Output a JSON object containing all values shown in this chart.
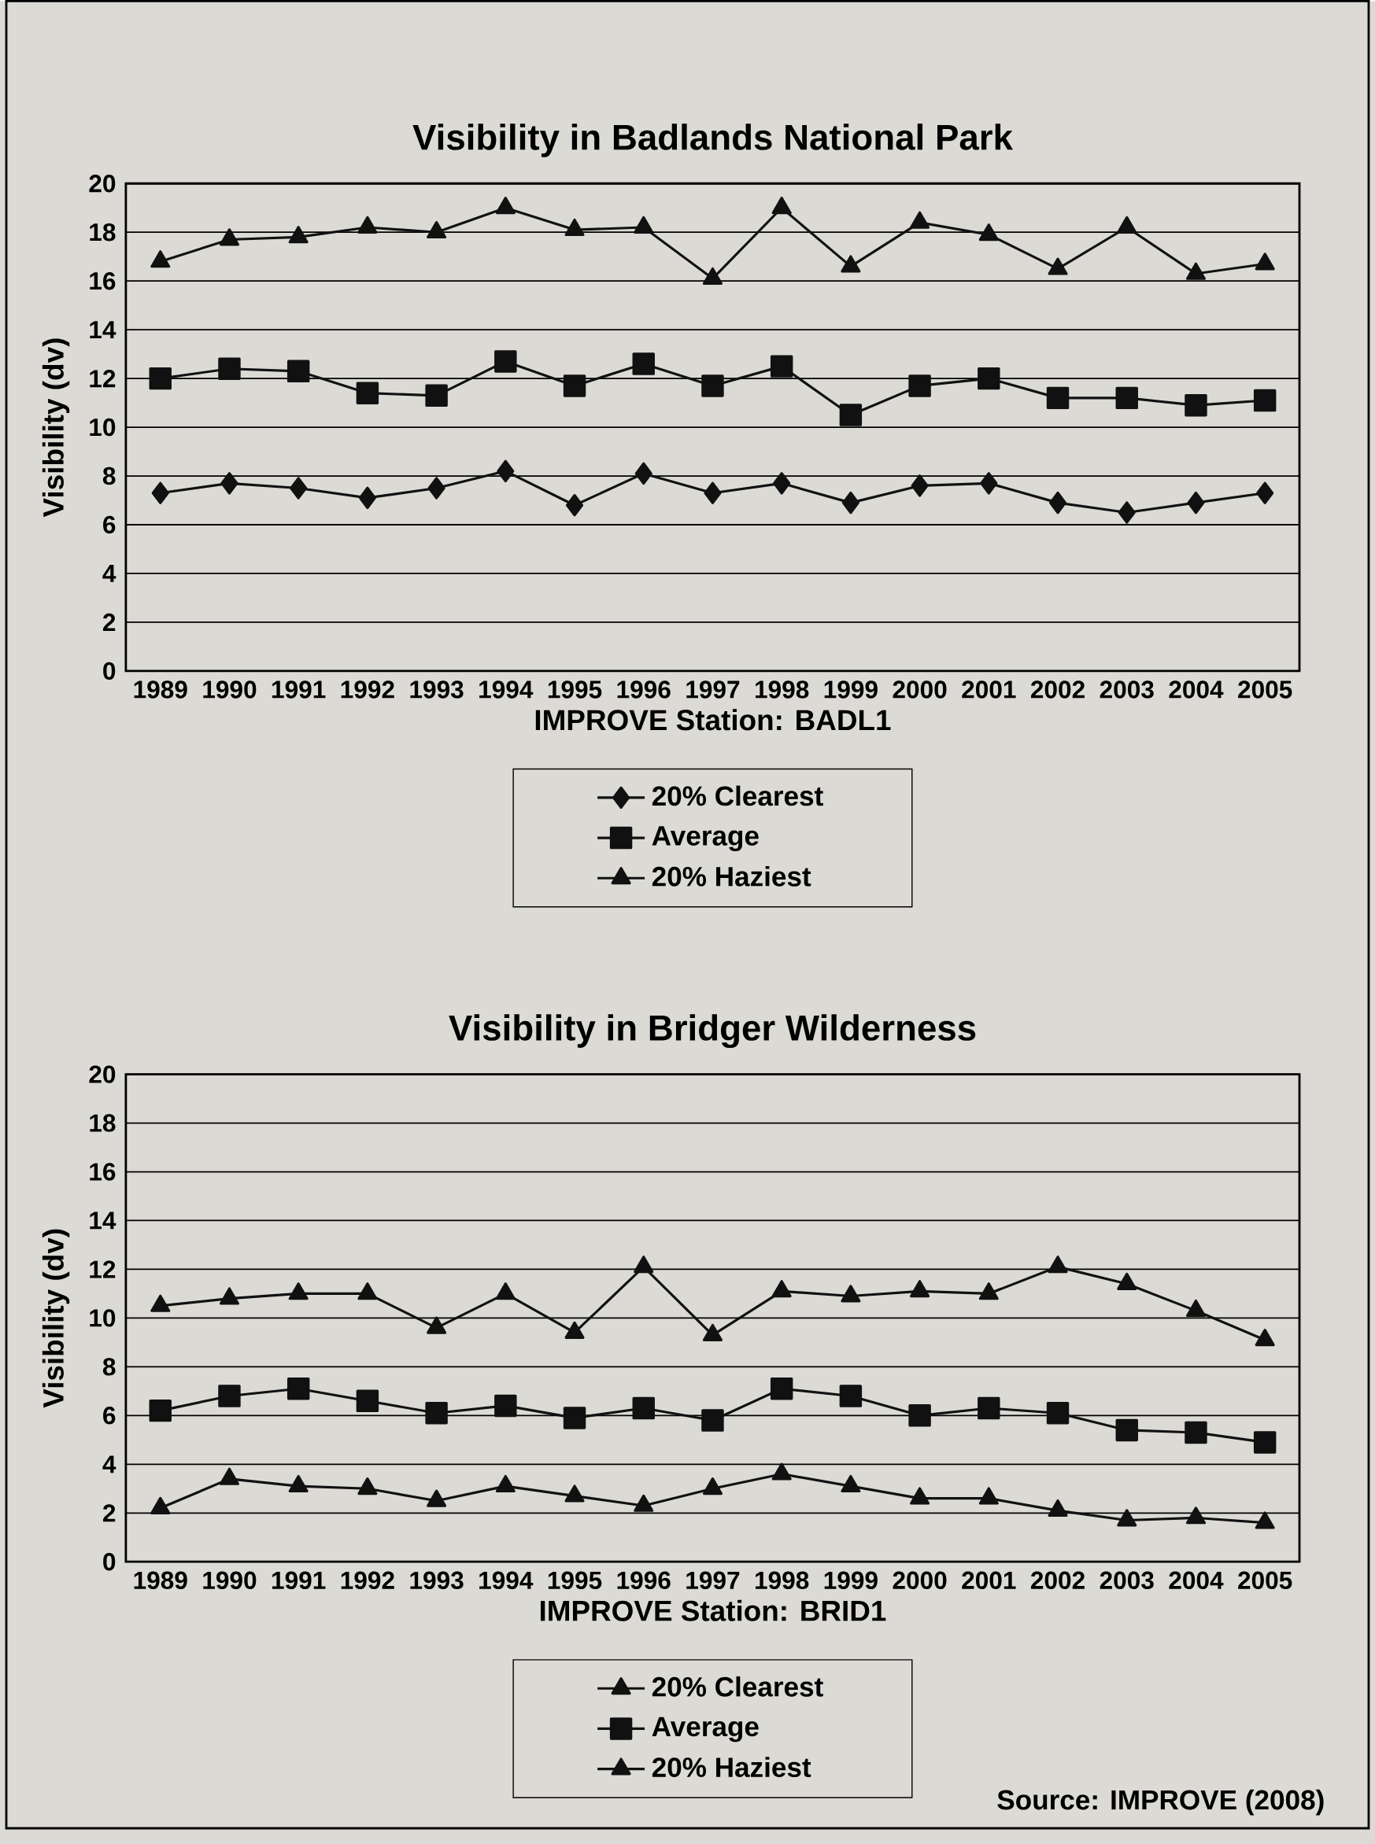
{
  "chart_data": [
    {
      "type": "line",
      "title": "Visibility in Badlands National Park",
      "xlabel": "IMPROVE Station:  BADL1",
      "ylabel": "Visibility (dv)",
      "categories": [
        "1989",
        "1990",
        "1991",
        "1992",
        "1993",
        "1994",
        "1995",
        "1996",
        "1997",
        "1998",
        "1999",
        "2000",
        "2001",
        "2002",
        "2003",
        "2004",
        "2005"
      ],
      "series": [
        {
          "name": "20% Clearest",
          "color": "#111111",
          "marker": "diamond",
          "values": [
            7.3,
            7.7,
            7.5,
            7.1,
            7.5,
            8.2,
            6.8,
            8.1,
            7.3,
            7.7,
            6.9,
            7.6,
            7.7,
            6.9,
            6.5,
            6.9,
            7.3
          ]
        },
        {
          "name": "Average",
          "color": "#111111",
          "marker": "square",
          "values": [
            12.0,
            12.4,
            12.3,
            11.4,
            11.3,
            12.7,
            11.7,
            12.6,
            11.7,
            12.5,
            10.5,
            11.7,
            12.0,
            11.2,
            11.2,
            10.9,
            11.1
          ]
        },
        {
          "name": "20% Haziest",
          "color": "#111111",
          "marker": "triangle",
          "values": [
            16.8,
            17.7,
            17.8,
            18.2,
            18.0,
            19.0,
            18.1,
            18.2,
            16.1,
            19.0,
            16.6,
            18.4,
            17.9,
            16.5,
            18.2,
            16.3,
            16.7
          ]
        }
      ],
      "ylim": [
        0,
        20
      ],
      "yticks": [
        0,
        2,
        4,
        6,
        8,
        10,
        12,
        14,
        16,
        18,
        20
      ],
      "grid": "y",
      "legend": "bottom"
    },
    {
      "type": "line",
      "title": "Visibility in Bridger Wilderness",
      "xlabel": "IMPROVE Station:  BRID1",
      "ylabel": "Visibility (dv)",
      "categories": [
        "1989",
        "1990",
        "1991",
        "1992",
        "1993",
        "1994",
        "1995",
        "1996",
        "1997",
        "1998",
        "1999",
        "2000",
        "2001",
        "2002",
        "2003",
        "2004",
        "2005"
      ],
      "series": [
        {
          "name": "20% Clearest",
          "color": "#111111",
          "marker": "triangle",
          "values": [
            2.2,
            3.4,
            3.1,
            3.0,
            2.5,
            3.1,
            2.7,
            2.3,
            3.0,
            3.6,
            3.1,
            2.6,
            2.6,
            2.1,
            1.7,
            1.8,
            1.6
          ]
        },
        {
          "name": "Average",
          "color": "#111111",
          "marker": "square",
          "values": [
            6.2,
            6.8,
            7.1,
            6.6,
            6.1,
            6.4,
            5.9,
            6.3,
            5.8,
            7.1,
            6.8,
            6.0,
            6.3,
            6.1,
            5.4,
            5.3,
            4.9
          ]
        },
        {
          "name": "20% Haziest",
          "color": "#111111",
          "marker": "triangle",
          "values": [
            10.5,
            10.8,
            11.0,
            11.0,
            9.6,
            11.0,
            9.4,
            12.1,
            9.3,
            11.1,
            10.9,
            11.1,
            11.0,
            12.1,
            11.4,
            10.3,
            9.1
          ]
        }
      ],
      "ylim": [
        0,
        20
      ],
      "yticks": [
        0,
        2,
        4,
        6,
        8,
        10,
        12,
        14,
        16,
        18,
        20
      ],
      "grid": "y",
      "legend": "bottom",
      "annotations": [
        "Source: IMPROVE (2008)"
      ]
    }
  ]
}
